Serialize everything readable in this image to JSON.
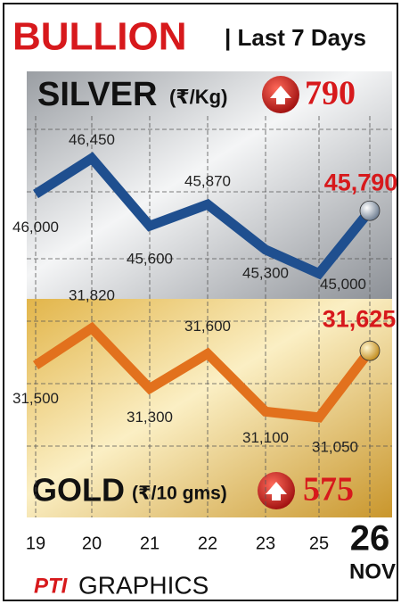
{
  "header": {
    "title": "BULLION",
    "subtitle": "| Last 7 Days"
  },
  "chart_data": [
    {
      "type": "line",
      "title": "SILVER",
      "unit": "(₹/Kg)",
      "change": 790,
      "categories": [
        "19",
        "20",
        "21",
        "22",
        "23",
        "25",
        "26"
      ],
      "month": "NOV",
      "series": [
        {
          "name": "Silver",
          "color": "#1f4f8f",
          "values": [
            46000,
            46450,
            45600,
            45870,
            45300,
            45000,
            45790
          ],
          "value_labels": [
            "46,000",
            "46,450",
            "45,600",
            "45,870",
            "45,300",
            "45,000",
            "45,790"
          ]
        }
      ],
      "ylim": [
        44850,
        46870
      ]
    },
    {
      "type": "line",
      "title": "GOLD",
      "unit": "(₹/10 gms)",
      "change": 575,
      "categories": [
        "19",
        "20",
        "21",
        "22",
        "23",
        "25",
        "26"
      ],
      "series": [
        {
          "name": "Gold",
          "color": "#e2711d",
          "values": [
            31500,
            31820,
            31300,
            31600,
            31100,
            31050,
            31625
          ],
          "value_labels": [
            "31,500",
            "31,820",
            "31,300",
            "31,600",
            "31,100",
            "31,050",
            "31,625"
          ]
        }
      ],
      "ylim": [
        30880,
        32034
      ]
    }
  ],
  "footer": {
    "brand": "PTI",
    "text": "GRAPHICS"
  }
}
